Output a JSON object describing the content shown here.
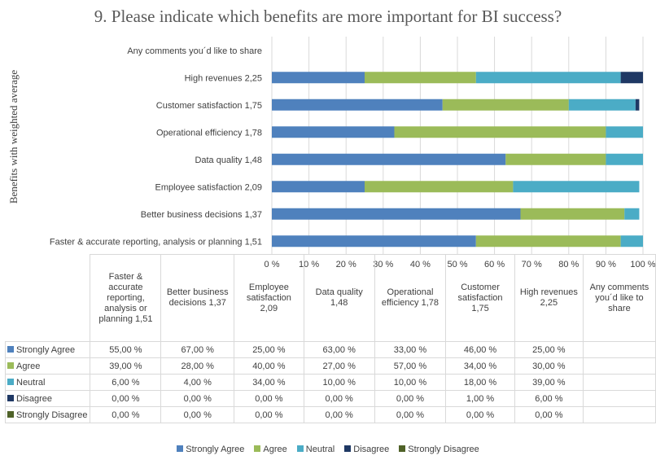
{
  "chart_data": {
    "type": "bar",
    "orientation": "horizontal",
    "stacked": "percent",
    "title": "9. Please indicate which benefits are more important for BI success?",
    "ylabel": "Benefits with weighted average",
    "categories": [
      "Any comments you´d like to share",
      "High revenues  2,25",
      "Customer satisfaction  1,75",
      "Operational efficiency  1,78",
      "Data quality  1,48",
      "Employee satisfaction  2,09",
      "Better business decisions  1,37",
      "Faster & accurate reporting, analysis or planning 1,51"
    ],
    "series": [
      {
        "name": "Strongly Agree",
        "color": "#4f81bd",
        "values": [
          0,
          25,
          46,
          33,
          63,
          25,
          67,
          55
        ]
      },
      {
        "name": "Agree",
        "color": "#9bbb59",
        "values": [
          0,
          30,
          34,
          57,
          27,
          40,
          28,
          39
        ]
      },
      {
        "name": "Neutral",
        "color": "#4bacc6",
        "values": [
          0,
          39,
          18,
          10,
          10,
          34,
          4,
          6
        ]
      },
      {
        "name": "Disagree",
        "color": "#1f3864",
        "values": [
          0,
          6,
          1,
          0,
          0,
          0,
          0,
          0
        ]
      },
      {
        "name": "Strongly Disagree",
        "color": "#4f6228",
        "values": [
          0,
          0,
          0,
          0,
          0,
          0,
          0,
          0
        ]
      }
    ],
    "xlim": [
      0,
      100
    ],
    "xticks": [
      "0 %",
      "10 %",
      "20 %",
      "30 %",
      "40 %",
      "50 %",
      "60 %",
      "70 %",
      "80 %",
      "90 %",
      "100 %"
    ],
    "grid": true,
    "legend": "bottom",
    "data_table": {
      "columns": [
        "Faster & accurate reporting, analysis or planning 1,51",
        "Better business decisions 1,37",
        "Employee satisfaction 2,09",
        "Data quality 1,48",
        "Operational efficiency 1,78",
        "Customer satisfaction 1,75",
        "High revenues 2,25",
        "Any comments you´d like to share"
      ],
      "rows": [
        {
          "label": "Strongly Agree",
          "color": "#4f81bd",
          "cells": [
            "55,00 %",
            "67,00 %",
            "25,00 %",
            "63,00 %",
            "33,00 %",
            "46,00 %",
            "25,00 %",
            ""
          ]
        },
        {
          "label": "Agree",
          "color": "#9bbb59",
          "cells": [
            "39,00 %",
            "28,00 %",
            "40,00 %",
            "27,00 %",
            "57,00 %",
            "34,00 %",
            "30,00 %",
            ""
          ]
        },
        {
          "label": "Neutral",
          "color": "#4bacc6",
          "cells": [
            "6,00 %",
            "4,00 %",
            "34,00 %",
            "10,00 %",
            "10,00 %",
            "18,00 %",
            "39,00 %",
            ""
          ]
        },
        {
          "label": "Disagree",
          "color": "#1f3864",
          "cells": [
            "0,00 %",
            "0,00 %",
            "0,00 %",
            "0,00 %",
            "0,00 %",
            "1,00 %",
            "6,00 %",
            ""
          ]
        },
        {
          "label": "Strongly Disagree",
          "color": "#4f6228",
          "cells": [
            "0,00 %",
            "0,00 %",
            "0,00 %",
            "0,00 %",
            "0,00 %",
            "0,00 %",
            "0,00 %",
            ""
          ]
        }
      ]
    }
  }
}
